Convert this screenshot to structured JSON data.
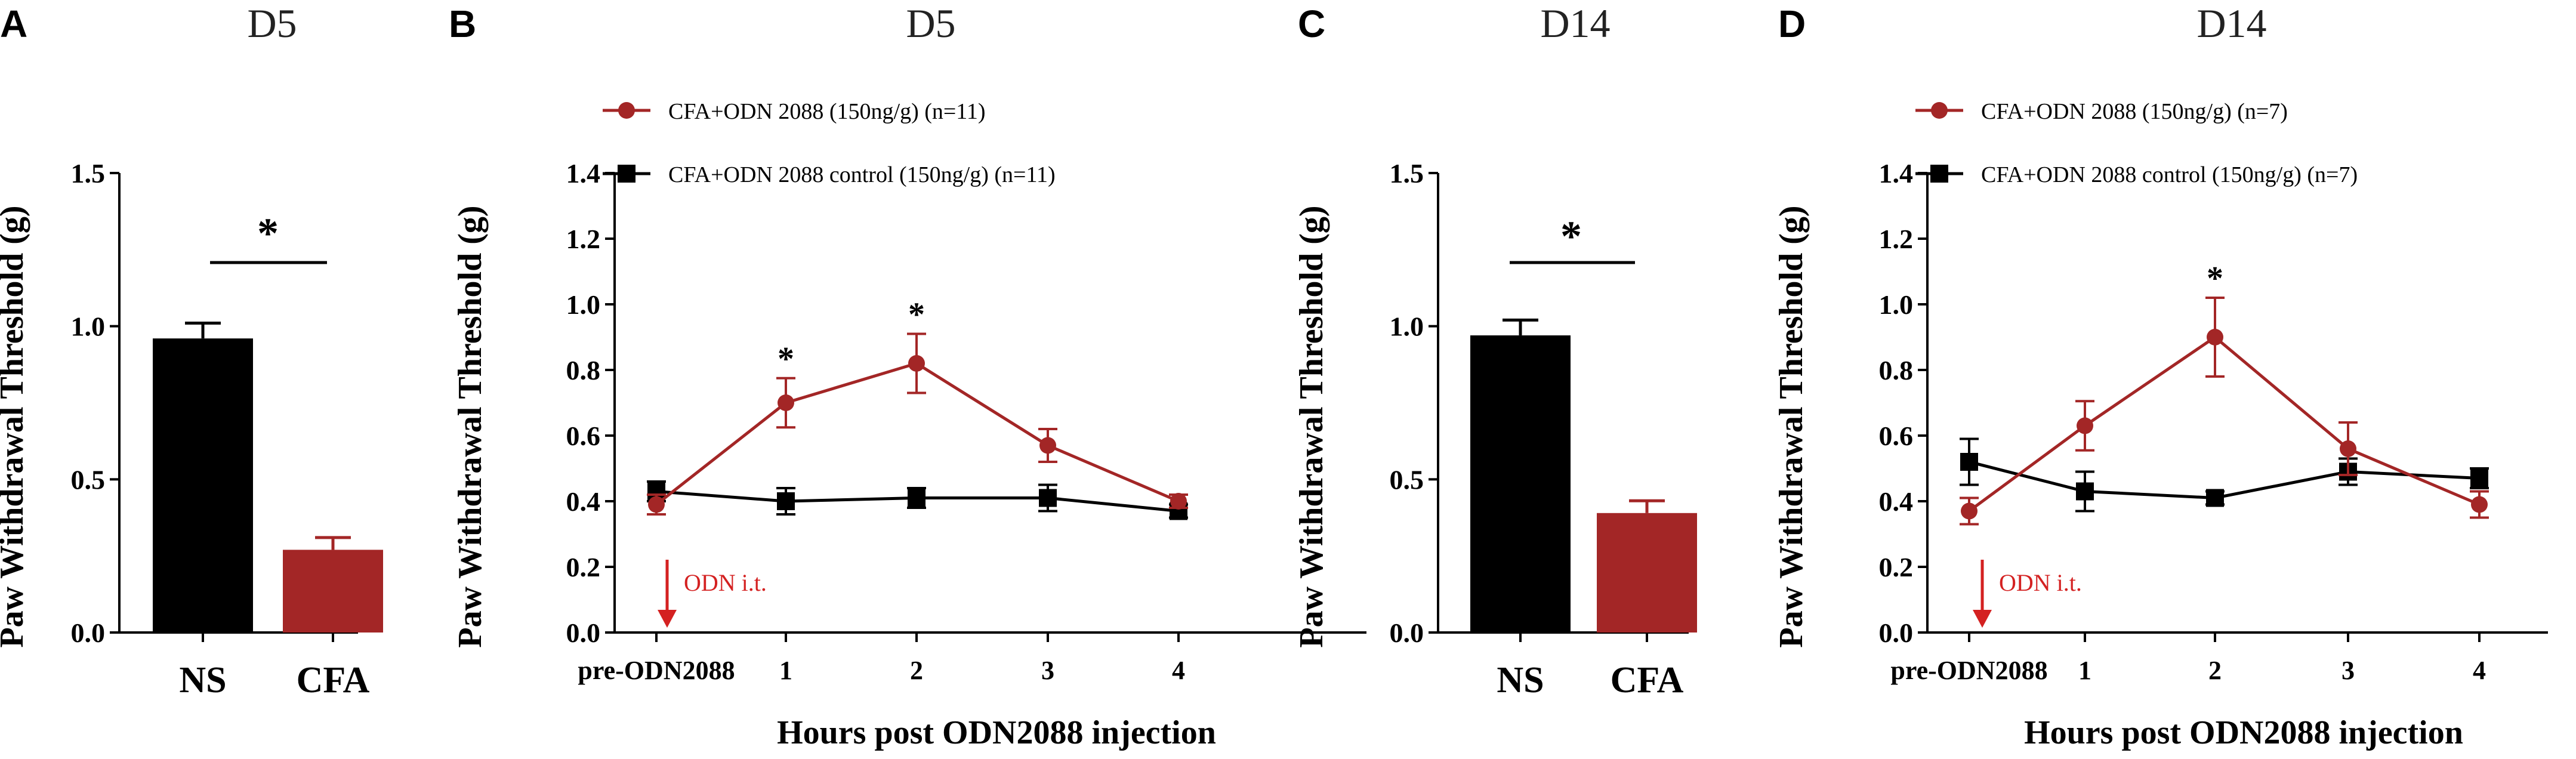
{
  "colors": {
    "red": "#a32626",
    "black": "#000000",
    "arrow": "#d42121"
  },
  "panels": [
    {
      "letter": "A",
      "title": "D5"
    },
    {
      "letter": "B",
      "title": "D5"
    },
    {
      "letter": "C",
      "title": "D14"
    },
    {
      "letter": "D",
      "title": "D14"
    }
  ],
  "chart_data": [
    {
      "panel": "A",
      "type": "bar",
      "title": "D5",
      "ylabel": "Paw Withdrawal Threshold (g)",
      "ylim": [
        0,
        1.5
      ],
      "yticks": [
        "0.0",
        "0.5",
        "1.0",
        "1.5"
      ],
      "categories": [
        "NS",
        "CFA"
      ],
      "values": [
        0.96,
        0.27
      ],
      "errors": [
        0.05,
        0.04
      ],
      "colors": [
        "#000000",
        "#a32626"
      ],
      "significance": "*"
    },
    {
      "panel": "B",
      "type": "line",
      "title": "D5",
      "ylabel": "Paw Withdrawal Threshold (g)",
      "xlabel": "Hours post ODN2088 injection",
      "ylim": [
        0,
        1.4
      ],
      "yticks": [
        "0.0",
        "0.2",
        "0.4",
        "0.6",
        "0.8",
        "1.0",
        "1.2",
        "1.4"
      ],
      "categories": [
        "pre-ODN2088",
        "1",
        "2",
        "3",
        "4"
      ],
      "series": [
        {
          "name": "CFA+ODN 2088 (150ng/g) (n=11)",
          "marker": "circle",
          "color": "#a32626",
          "values": [
            0.39,
            0.7,
            0.82,
            0.57,
            0.4
          ],
          "errors": [
            0.03,
            0.075,
            0.09,
            0.05,
            0.02
          ]
        },
        {
          "name": "CFA+ODN 2088 control (150ng/g) (n=11)",
          "marker": "square",
          "color": "#000000",
          "values": [
            0.43,
            0.4,
            0.41,
            0.41,
            0.37
          ],
          "errors": [
            0.03,
            0.04,
            0.03,
            0.04,
            0.02
          ]
        }
      ],
      "significance": [
        {
          "category": "1",
          "label": "*"
        },
        {
          "category": "2",
          "label": "*"
        }
      ],
      "annotation": "ODN i.t."
    },
    {
      "panel": "C",
      "type": "bar",
      "title": "D14",
      "ylabel": "Paw Withdrawal Threshold (g)",
      "ylim": [
        0,
        1.5
      ],
      "yticks": [
        "0.0",
        "0.5",
        "1.0",
        "1.5"
      ],
      "categories": [
        "NS",
        "CFA"
      ],
      "values": [
        0.97,
        0.39
      ],
      "errors": [
        0.05,
        0.04
      ],
      "colors": [
        "#000000",
        "#a32626"
      ],
      "significance": "*"
    },
    {
      "panel": "D",
      "type": "line",
      "title": "D14",
      "ylabel": "Paw Withdrawal Threshold (g)",
      "xlabel": "Hours post ODN2088 injection",
      "ylim": [
        0,
        1.4
      ],
      "yticks": [
        "0.0",
        "0.2",
        "0.4",
        "0.6",
        "0.8",
        "1.0",
        "1.2",
        "1.4"
      ],
      "categories": [
        "pre-ODN2088",
        "1",
        "2",
        "3",
        "4"
      ],
      "series": [
        {
          "name": "CFA+ODN 2088 (150ng/g) (n=7)",
          "marker": "circle",
          "color": "#a32626",
          "values": [
            0.37,
            0.63,
            0.9,
            0.56,
            0.39
          ],
          "errors": [
            0.04,
            0.075,
            0.12,
            0.08,
            0.04
          ]
        },
        {
          "name": "CFA+ODN 2088 control (150ng/g) (n=7)",
          "marker": "square",
          "color": "#000000",
          "values": [
            0.52,
            0.43,
            0.41,
            0.49,
            0.47
          ],
          "errors": [
            0.07,
            0.06,
            0.02,
            0.04,
            0.03
          ]
        }
      ],
      "significance": [
        {
          "category": "2",
          "label": "*"
        }
      ],
      "annotation": "ODN i.t."
    }
  ]
}
